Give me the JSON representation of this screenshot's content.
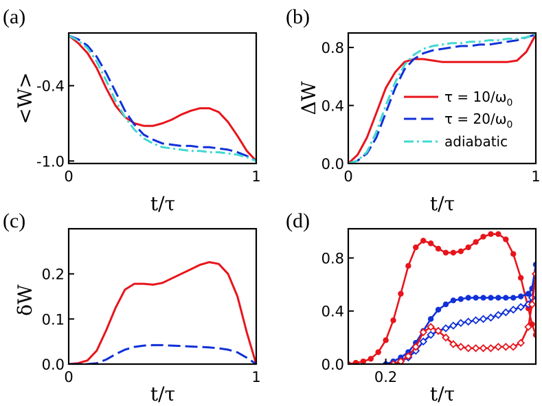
{
  "chart_data": [
    {
      "panel": "(a)",
      "type": "line",
      "xlabel": "t/τ",
      "ylabel": "<W>",
      "xlim": [
        0,
        1
      ],
      "ylim": [
        -1.02,
        0.02
      ],
      "xticks": [
        0,
        1
      ],
      "xtick_labels": [
        "0",
        "1"
      ],
      "yticks": [
        -0.4,
        -1.0
      ],
      "ytick_labels": [
        "-0.4",
        "-1.0"
      ],
      "series": [
        {
          "name": "τ = 10/ω0",
          "color": "#e8141b",
          "dash": "solid",
          "x": [
            0,
            0.05,
            0.1,
            0.15,
            0.2,
            0.25,
            0.3,
            0.35,
            0.4,
            0.45,
            0.5,
            0.55,
            0.6,
            0.65,
            0.7,
            0.75,
            0.8,
            0.85,
            0.9,
            0.95,
            1.0
          ],
          "y": [
            0.0,
            -0.06,
            -0.14,
            -0.26,
            -0.42,
            -0.56,
            -0.65,
            -0.7,
            -0.72,
            -0.72,
            -0.7,
            -0.67,
            -0.63,
            -0.6,
            -0.58,
            -0.58,
            -0.61,
            -0.69,
            -0.8,
            -0.92,
            -1.0
          ]
        },
        {
          "name": "τ = 20/ω0",
          "color": "#1030d8",
          "dash": "long",
          "x": [
            0,
            0.05,
            0.1,
            0.15,
            0.2,
            0.25,
            0.3,
            0.35,
            0.4,
            0.45,
            0.5,
            0.55,
            0.6,
            0.65,
            0.7,
            0.75,
            0.8,
            0.85,
            0.9,
            0.95,
            1.0
          ],
          "y": [
            0.0,
            -0.03,
            -0.08,
            -0.17,
            -0.3,
            -0.45,
            -0.6,
            -0.71,
            -0.79,
            -0.83,
            -0.86,
            -0.87,
            -0.88,
            -0.88,
            -0.89,
            -0.89,
            -0.9,
            -0.91,
            -0.93,
            -0.96,
            -1.0
          ]
        },
        {
          "name": "adiabatic",
          "color": "#40d8d0",
          "dash": "dashdot",
          "x": [
            0,
            0.05,
            0.1,
            0.15,
            0.2,
            0.25,
            0.3,
            0.35,
            0.4,
            0.45,
            0.5,
            0.55,
            0.6,
            0.65,
            0.7,
            0.75,
            0.8,
            0.85,
            0.9,
            0.95,
            1.0
          ],
          "y": [
            0.0,
            -0.04,
            -0.1,
            -0.21,
            -0.36,
            -0.52,
            -0.65,
            -0.75,
            -0.82,
            -0.86,
            -0.89,
            -0.9,
            -0.91,
            -0.92,
            -0.92,
            -0.93,
            -0.93,
            -0.94,
            -0.95,
            -0.97,
            -1.0
          ]
        }
      ]
    },
    {
      "panel": "(b)",
      "type": "line",
      "xlabel": "t/τ",
      "ylabel": "ΔW",
      "xlim": [
        0,
        1
      ],
      "ylim": [
        0,
        0.9
      ],
      "xticks": [
        0,
        1
      ],
      "xtick_labels": [
        "0",
        "1"
      ],
      "yticks": [
        0.0,
        0.4,
        0.8
      ],
      "ytick_labels": [
        "0.0",
        "0.4",
        "0.8"
      ],
      "legend": {
        "position": "right",
        "entries": [
          {
            "label": "τ = 10/ω",
            "sub": "0",
            "color": "#e8141b",
            "dash": "solid"
          },
          {
            "label": "τ = 20/ω",
            "sub": "0",
            "color": "#1030d8",
            "dash": "long"
          },
          {
            "label": "adiabatic",
            "sub": "",
            "color": "#40d8d0",
            "dash": "dashdot"
          }
        ]
      },
      "series": [
        {
          "name": "τ = 10/ω0",
          "color": "#e8141b",
          "dash": "solid",
          "x": [
            0,
            0.05,
            0.1,
            0.15,
            0.2,
            0.25,
            0.3,
            0.35,
            0.4,
            0.45,
            0.5,
            0.55,
            0.6,
            0.65,
            0.7,
            0.75,
            0.8,
            0.85,
            0.9,
            0.95,
            1.0
          ],
          "y": [
            0.0,
            0.06,
            0.18,
            0.35,
            0.52,
            0.63,
            0.7,
            0.72,
            0.72,
            0.71,
            0.7,
            0.7,
            0.7,
            0.7,
            0.7,
            0.7,
            0.7,
            0.7,
            0.71,
            0.77,
            0.89
          ]
        },
        {
          "name": "τ = 20/ω0",
          "color": "#1030d8",
          "dash": "long",
          "x": [
            0,
            0.05,
            0.1,
            0.15,
            0.2,
            0.25,
            0.3,
            0.35,
            0.4,
            0.45,
            0.5,
            0.55,
            0.6,
            0.65,
            0.7,
            0.75,
            0.8,
            0.85,
            0.9,
            0.95,
            1.0
          ],
          "y": [
            0.0,
            0.02,
            0.07,
            0.18,
            0.35,
            0.52,
            0.65,
            0.72,
            0.76,
            0.78,
            0.79,
            0.8,
            0.81,
            0.81,
            0.82,
            0.82,
            0.83,
            0.84,
            0.85,
            0.87,
            0.89
          ]
        },
        {
          "name": "adiabatic",
          "color": "#40d8d0",
          "dash": "dashdot",
          "x": [
            0,
            0.05,
            0.1,
            0.15,
            0.2,
            0.25,
            0.3,
            0.35,
            0.4,
            0.45,
            0.5,
            0.55,
            0.6,
            0.65,
            0.7,
            0.75,
            0.8,
            0.85,
            0.9,
            0.95,
            1.0
          ],
          "y": [
            0.0,
            0.02,
            0.08,
            0.22,
            0.4,
            0.56,
            0.68,
            0.75,
            0.79,
            0.81,
            0.82,
            0.83,
            0.83,
            0.84,
            0.84,
            0.85,
            0.85,
            0.86,
            0.86,
            0.87,
            0.89
          ]
        }
      ]
    },
    {
      "panel": "(c)",
      "type": "line",
      "xlabel": "t/τ",
      "ylabel": "δW",
      "xlim": [
        0,
        1
      ],
      "ylim": [
        0,
        0.3
      ],
      "xticks": [
        0,
        1
      ],
      "xtick_labels": [
        "0",
        "1"
      ],
      "yticks": [
        0.0,
        0.1,
        0.2
      ],
      "ytick_labels": [
        "0.0",
        "0.1",
        "0.2"
      ],
      "series": [
        {
          "name": "τ = 10/ω0",
          "color": "#e8141b",
          "dash": "solid",
          "x": [
            0,
            0.05,
            0.1,
            0.15,
            0.2,
            0.25,
            0.3,
            0.35,
            0.4,
            0.45,
            0.5,
            0.55,
            0.6,
            0.65,
            0.7,
            0.75,
            0.8,
            0.85,
            0.9,
            0.95,
            1.0
          ],
          "y": [
            0.0,
            0.002,
            0.008,
            0.03,
            0.075,
            0.125,
            0.165,
            0.178,
            0.178,
            0.176,
            0.18,
            0.19,
            0.2,
            0.21,
            0.22,
            0.226,
            0.222,
            0.2,
            0.15,
            0.07,
            0.0
          ]
        },
        {
          "name": "τ = 20/ω0",
          "color": "#1030d8",
          "dash": "long",
          "x": [
            0,
            0.1,
            0.15,
            0.2,
            0.25,
            0.3,
            0.35,
            0.4,
            0.45,
            0.5,
            0.55,
            0.6,
            0.65,
            0.7,
            0.75,
            0.8,
            0.85,
            0.9,
            0.95,
            1.0
          ],
          "y": [
            0.0,
            0.0,
            0.002,
            0.01,
            0.022,
            0.032,
            0.038,
            0.041,
            0.042,
            0.042,
            0.041,
            0.04,
            0.039,
            0.038,
            0.037,
            0.035,
            0.032,
            0.026,
            0.014,
            0.0
          ]
        }
      ]
    },
    {
      "panel": "(d)",
      "type": "line",
      "xlabel": "t/τ",
      "ylabel": "",
      "xlim": [
        0.15,
        0.4
      ],
      "ylim": [
        0,
        1.02
      ],
      "xticks": [
        0.2
      ],
      "xtick_labels": [
        "0.2"
      ],
      "yticks": [
        0.0,
        0.4,
        0.8
      ],
      "ytick_labels": [
        "0.0",
        "0.4",
        "0.8"
      ],
      "series": [
        {
          "name": "filled red",
          "color": "#e8141b",
          "marker": "filled-circle",
          "x": [
            0.15,
            0.16,
            0.17,
            0.18,
            0.19,
            0.2,
            0.21,
            0.22,
            0.23,
            0.24,
            0.25,
            0.26,
            0.27,
            0.28,
            0.29,
            0.3,
            0.31,
            0.32,
            0.33,
            0.34,
            0.35,
            0.36,
            0.37,
            0.38,
            0.39,
            0.395,
            0.4
          ],
          "y": [
            0.0,
            0.01,
            0.02,
            0.04,
            0.09,
            0.18,
            0.33,
            0.53,
            0.74,
            0.88,
            0.93,
            0.91,
            0.87,
            0.84,
            0.84,
            0.85,
            0.88,
            0.92,
            0.96,
            0.98,
            0.98,
            0.94,
            0.83,
            0.65,
            0.42,
            0.3,
            0.22
          ]
        },
        {
          "name": "filled blue",
          "color": "#1030d8",
          "marker": "filled-circle",
          "x": [
            0.2,
            0.21,
            0.22,
            0.23,
            0.24,
            0.25,
            0.26,
            0.27,
            0.28,
            0.29,
            0.3,
            0.31,
            0.32,
            0.33,
            0.34,
            0.35,
            0.36,
            0.37,
            0.38,
            0.39,
            0.395,
            0.4
          ],
          "y": [
            0.0,
            0.02,
            0.05,
            0.09,
            0.16,
            0.25,
            0.34,
            0.41,
            0.45,
            0.48,
            0.49,
            0.5,
            0.5,
            0.5,
            0.5,
            0.5,
            0.5,
            0.5,
            0.51,
            0.53,
            0.57,
            0.75
          ]
        },
        {
          "name": "open blue",
          "color": "#1030d8",
          "marker": "open-diamond",
          "x": [
            0.21,
            0.22,
            0.23,
            0.24,
            0.25,
            0.26,
            0.27,
            0.28,
            0.29,
            0.3,
            0.31,
            0.32,
            0.33,
            0.34,
            0.35,
            0.36,
            0.37,
            0.38,
            0.39,
            0.395,
            0.4
          ],
          "y": [
            0.0,
            0.02,
            0.05,
            0.1,
            0.17,
            0.22,
            0.25,
            0.27,
            0.29,
            0.31,
            0.32,
            0.33,
            0.34,
            0.35,
            0.37,
            0.39,
            0.41,
            0.43,
            0.45,
            0.5,
            0.68
          ]
        },
        {
          "name": "open red",
          "color": "#e8141b",
          "marker": "open-diamond",
          "x": [
            0.21,
            0.22,
            0.23,
            0.24,
            0.25,
            0.26,
            0.27,
            0.28,
            0.29,
            0.3,
            0.31,
            0.32,
            0.33,
            0.34,
            0.35,
            0.36,
            0.37,
            0.38,
            0.39,
            0.395,
            0.4
          ],
          "y": [
            0.0,
            0.02,
            0.06,
            0.13,
            0.24,
            0.28,
            0.25,
            0.2,
            0.15,
            0.13,
            0.12,
            0.12,
            0.12,
            0.12,
            0.13,
            0.13,
            0.13,
            0.16,
            0.28,
            0.45,
            0.68
          ]
        }
      ]
    }
  ]
}
